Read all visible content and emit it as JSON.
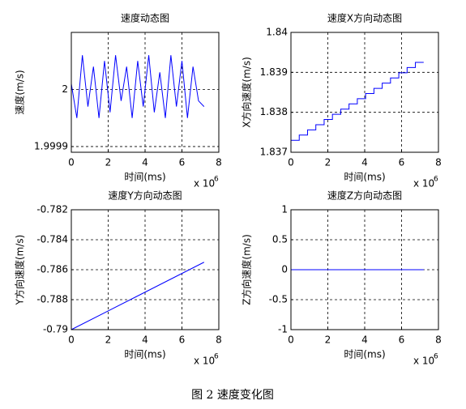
{
  "chart_data": [
    {
      "type": "line",
      "title": "速度动态图",
      "xlabel": "时间(ms)",
      "ylabel": "速度(m/s)",
      "x_scale_label": "x 10",
      "x_scale_exponent": "6",
      "x": [
        0,
        0.3,
        0.6,
        0.9,
        1.2,
        1.5,
        1.8,
        2.1,
        2.4,
        2.7,
        3,
        3.3,
        3.6,
        3.9,
        4.2,
        4.5,
        4.8,
        5.1,
        5.4,
        5.7,
        6,
        6.3,
        6.6,
        6.9,
        7.2
      ],
      "series": [
        {
          "color": "#0000ff",
          "values": [
            2.00001,
            1.99995,
            2.00006,
            1.99997,
            2.00004,
            1.99995,
            2.00005,
            1.99996,
            2.00006,
            1.99998,
            2.00004,
            1.99995,
            2.00005,
            1.99997,
            2.00006,
            1.99996,
            2.00003,
            1.99995,
            2.00006,
            1.99997,
            2.00005,
            1.99995,
            2.00004,
            1.99998,
            1.99997
          ]
        }
      ],
      "xlim": [
        0,
        8
      ],
      "xticks": [
        0,
        2,
        4,
        6,
        8
      ],
      "ylim": [
        1.99989,
        2.0001
      ],
      "yticks": [
        1.9999,
        2
      ],
      "grid": true
    },
    {
      "type": "line",
      "title": "速度X方向动态图",
      "xlabel": "时间(ms)",
      "ylabel": "X方向速度(m/s)",
      "x_scale_label": "x 10",
      "x_scale_exponent": "6",
      "x": [
        0,
        0.45,
        0.45,
        0.9,
        0.9,
        1.35,
        1.35,
        1.8,
        1.8,
        2.25,
        2.25,
        2.7,
        2.7,
        3.15,
        3.15,
        3.6,
        3.6,
        4.05,
        4.05,
        4.5,
        4.5,
        4.95,
        4.95,
        5.4,
        5.4,
        5.85,
        5.85,
        6.3,
        6.3,
        6.75,
        6.75,
        7.2
      ],
      "series": [
        {
          "color": "#0000ff",
          "values": [
            1.8373,
            1.8373,
            1.83743,
            1.83743,
            1.83756,
            1.83756,
            1.83769,
            1.83769,
            1.83782,
            1.83782,
            1.83795,
            1.83795,
            1.83808,
            1.83808,
            1.83821,
            1.83821,
            1.83834,
            1.83834,
            1.83847,
            1.83847,
            1.8386,
            1.8386,
            1.83873,
            1.83873,
            1.83886,
            1.83886,
            1.83899,
            1.83899,
            1.83912,
            1.83912,
            1.83925,
            1.83925
          ]
        }
      ],
      "xlim": [
        0,
        8
      ],
      "xticks": [
        0,
        2,
        4,
        6,
        8
      ],
      "ylim": [
        1.837,
        1.84
      ],
      "yticks": [
        1.837,
        1.838,
        1.839,
        1.84
      ],
      "grid": true
    },
    {
      "type": "line",
      "title": "速度Y方向动态图",
      "xlabel": "时间(ms)",
      "ylabel": "Y方向速度(m/s)",
      "x_scale_label": "x 10",
      "x_scale_exponent": "6",
      "x": [
        0,
        3.6,
        7.2
      ],
      "series": [
        {
          "color": "#0000ff",
          "values": [
            -0.79,
            -0.78775,
            -0.7855
          ]
        }
      ],
      "xlim": [
        0,
        8
      ],
      "xticks": [
        0,
        2,
        4,
        6,
        8
      ],
      "ylim": [
        -0.79,
        -0.782
      ],
      "yticks": [
        -0.79,
        -0.788,
        -0.786,
        -0.784,
        -0.782
      ],
      "grid": true
    },
    {
      "type": "line",
      "title": "速度Z方向动态图",
      "xlabel": "时间(ms)",
      "ylabel": "Z方向速度(m/s)",
      "x_scale_label": "x 10",
      "x_scale_exponent": "6",
      "x": [
        0,
        7.2
      ],
      "series": [
        {
          "color": "#0000ff",
          "values": [
            0,
            0
          ]
        }
      ],
      "xlim": [
        0,
        8
      ],
      "xticks": [
        0,
        2,
        4,
        6,
        8
      ],
      "ylim": [
        -1,
        1
      ],
      "yticks": [
        -1,
        -0.5,
        0,
        0.5,
        1
      ],
      "grid": true
    }
  ],
  "caption": "图 2  速度变化图"
}
